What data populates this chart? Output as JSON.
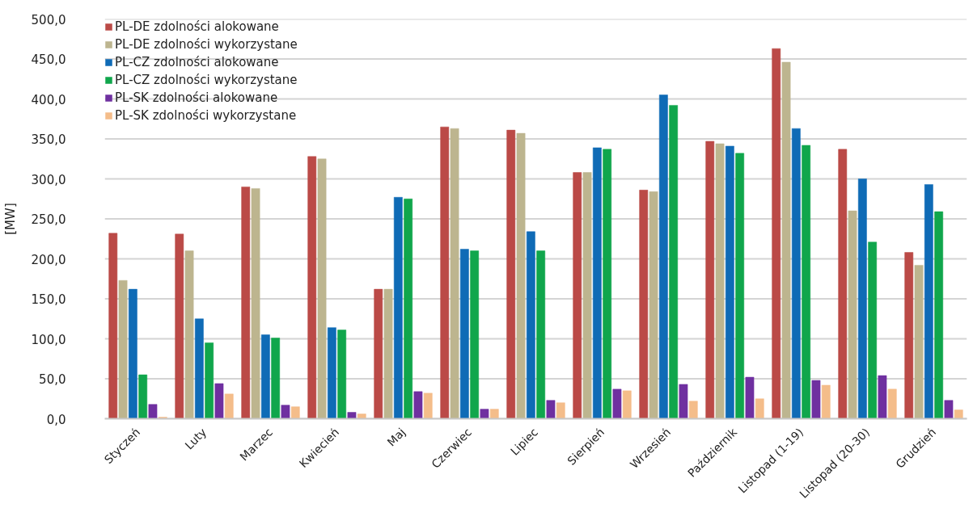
{
  "chart_data": {
    "type": "bar",
    "ylabel": "[MW]",
    "categories": [
      "Styczeń",
      "Luty",
      "Marzec",
      "Kwiecień",
      "Maj",
      "Czerwiec",
      "Lipiec",
      "Sierpień",
      "Wrzesień",
      "Październik",
      "Listopad (1-19)",
      "Listopad (20-30)",
      "Grudzień"
    ],
    "series": [
      {
        "name": "PL-DE zdolności alokowane",
        "color": "#bb4a47",
        "values": [
          232,
          231,
          290,
          328,
          162,
          365,
          361,
          308,
          286,
          347,
          463,
          337,
          208
        ]
      },
      {
        "name": "PL-DE zdolności wykorzystane",
        "color": "#bdb58f",
        "values": [
          173,
          210,
          288,
          325,
          162,
          363,
          357,
          308,
          284,
          344,
          446,
          260,
          192
        ]
      },
      {
        "name": "PL-CZ zdolności alokowane",
        "color": "#0f6bb6",
        "values": [
          162,
          125,
          105,
          114,
          277,
          212,
          234,
          339,
          405,
          341,
          363,
          300,
          293
        ]
      },
      {
        "name": "PL-CZ zdolności wykorzystane",
        "color": "#10a64c",
        "values": [
          55,
          95,
          101,
          111,
          275,
          210,
          210,
          337,
          392,
          332,
          342,
          221,
          259
        ]
      },
      {
        "name": "PL-SK zdolności alokowane",
        "color": "#6f30a0",
        "values": [
          18,
          44,
          17,
          8,
          34,
          12,
          23,
          37,
          43,
          52,
          48,
          54,
          23
        ]
      },
      {
        "name": "PL-SK zdolności wykorzystane",
        "color": "#f4bd8a",
        "values": [
          2,
          31,
          15,
          6,
          32,
          12,
          20,
          35,
          22,
          25,
          42,
          37,
          11
        ]
      }
    ],
    "ylim": [
      0,
      500
    ],
    "yticks": [
      {
        "value": 0,
        "label": "0,0"
      },
      {
        "value": 50,
        "label": "50,0"
      },
      {
        "value": 100,
        "label": "100,0"
      },
      {
        "value": 150,
        "label": "150,0"
      },
      {
        "value": 200,
        "label": "200,0"
      },
      {
        "value": 250,
        "label": "250,0"
      },
      {
        "value": 300,
        "label": "300,0"
      },
      {
        "value": 350,
        "label": "350,0"
      },
      {
        "value": 400,
        "label": "400,0"
      },
      {
        "value": 450,
        "label": "450,0"
      },
      {
        "value": 500,
        "label": "500,0"
      }
    ],
    "grid": "y",
    "legend": "top left"
  }
}
